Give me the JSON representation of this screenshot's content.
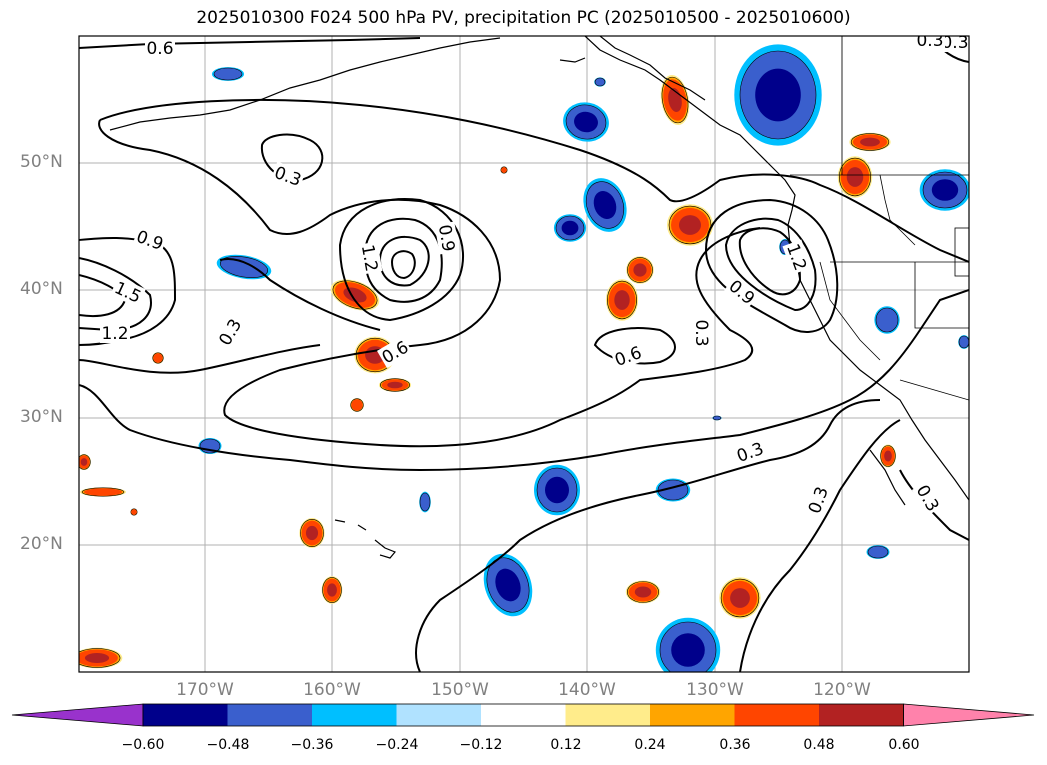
{
  "title": "2025010300 F024 500 hPa PV, precipitation PC (2025010500 - 2025010600)",
  "lat_labels": [
    "50°N",
    "40°N",
    "30°N",
    "20°N"
  ],
  "lon_labels": [
    "170°W",
    "160°W",
    "150°W",
    "140°W",
    "130°W",
    "120°W"
  ],
  "contour_labels": [
    "0.6",
    "0.3",
    "0.9",
    "1.5",
    "1.2",
    "0.3",
    "1.2",
    "0.9",
    "0.6",
    "0.6",
    "0.3",
    "0.9",
    "1.2",
    "0.3",
    "0.3",
    "0.3",
    "0.3",
    "0.3"
  ],
  "colorbar": {
    "ticks": [
      "−0.60",
      "−0.48",
      "−0.36",
      "−0.24",
      "−0.12",
      "0.12",
      "0.24",
      "0.36",
      "0.48",
      "0.60"
    ],
    "colors": [
      "#9932cc",
      "#00008b",
      "#3a5fcd",
      "#00bfff",
      "#b0e2ff",
      "#ffffff",
      "#ffec8b",
      "#ffa500",
      "#ff4500",
      "#b22222",
      "#ff82ab"
    ]
  },
  "colors": {
    "neg_strong": "#00008b",
    "neg_mid": "#3a5fcd",
    "neg_light": "#00bfff",
    "pos_light": "#ffec8b",
    "pos_mid": "#ffa500",
    "pos_strong": "#ff4500",
    "pos_dark": "#b22222"
  }
}
